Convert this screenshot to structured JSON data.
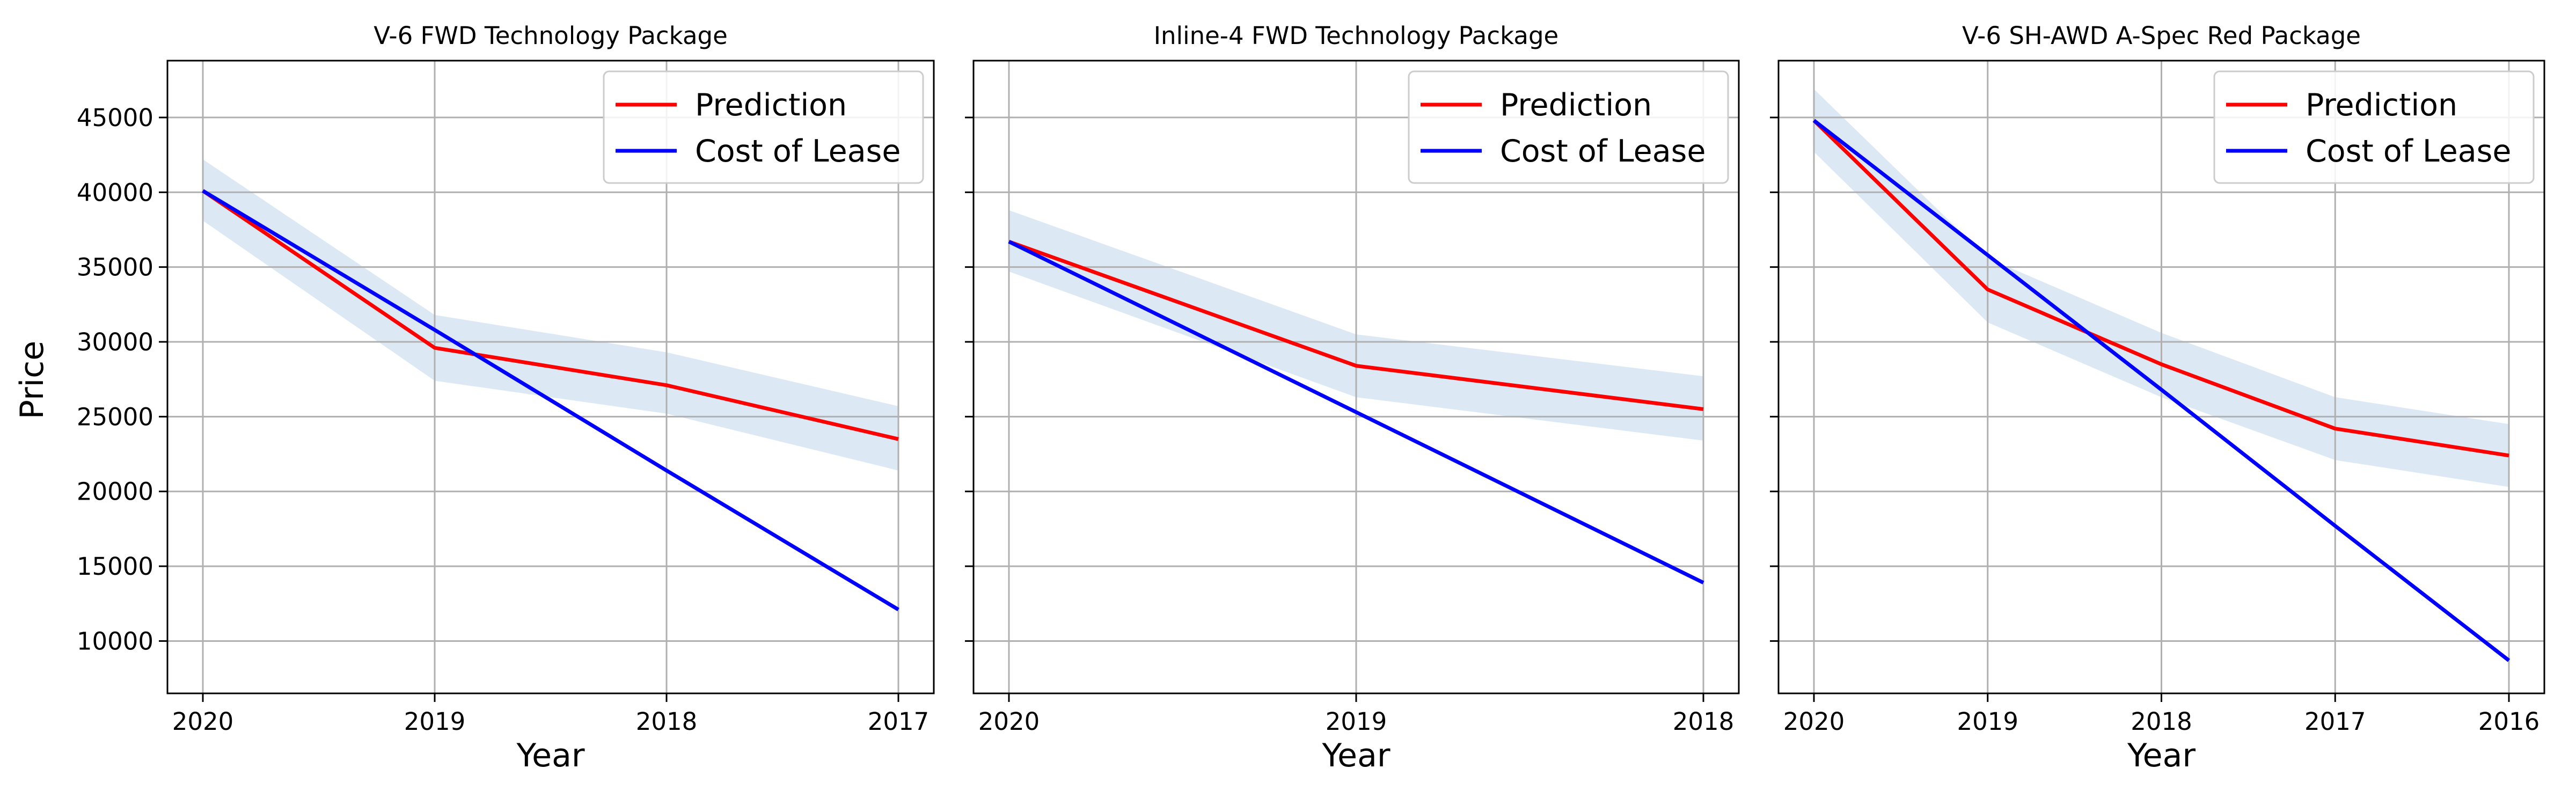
{
  "figure": {
    "ylabel": "Price",
    "xlabel": "Year",
    "yticks": [
      10000,
      15000,
      20000,
      25000,
      30000,
      35000,
      40000,
      45000
    ],
    "ylim": [
      6500,
      48800
    ]
  },
  "colors": {
    "prediction": "#ff0000",
    "cost_of_lease": "#0000ff",
    "band": "#dce9f5",
    "grid": "#b0b0b0"
  },
  "chart_data": [
    {
      "type": "line",
      "title": "V-6 FWD Technology Package",
      "categories": [
        "2020",
        "2019",
        "2018",
        "2017"
      ],
      "xlabel": "Year",
      "ylabel": "Price",
      "ylim": [
        6500,
        48800
      ],
      "grid": true,
      "legend_position": "top-right",
      "series": [
        {
          "name": "Prediction",
          "values": [
            40100,
            29600,
            27100,
            23500
          ]
        },
        {
          "name": "Cost of Lease",
          "values": [
            40100,
            30800,
            21400,
            12100
          ]
        }
      ],
      "band": {
        "lower": [
          38100,
          27400,
          25200,
          21400
        ],
        "upper": [
          42200,
          31800,
          29300,
          25700
        ]
      }
    },
    {
      "type": "line",
      "title": "Inline-4 FWD Technology Package",
      "categories": [
        "2020",
        "2019",
        "2018"
      ],
      "xlabel": "Year",
      "ylabel": "",
      "ylim": [
        6500,
        48800
      ],
      "grid": true,
      "legend_position": "top-right",
      "series": [
        {
          "name": "Prediction",
          "values": [
            36700,
            28400,
            25500
          ]
        },
        {
          "name": "Cost of Lease",
          "values": [
            36700,
            25300,
            13900
          ]
        }
      ],
      "band": {
        "lower": [
          34700,
          26300,
          23400
        ],
        "upper": [
          38800,
          30500,
          27700
        ]
      }
    },
    {
      "type": "line",
      "title": "V-6 SH-AWD A-Spec Red Package",
      "categories": [
        "2020",
        "2019",
        "2018",
        "2017",
        "2016"
      ],
      "xlabel": "Year",
      "ylabel": "",
      "ylim": [
        6500,
        48800
      ],
      "grid": true,
      "legend_position": "top-right",
      "series": [
        {
          "name": "Prediction",
          "values": [
            44800,
            33500,
            28500,
            24200,
            22400
          ]
        },
        {
          "name": "Cost of Lease",
          "values": [
            44800,
            35800,
            26800,
            17700,
            8700
          ]
        }
      ],
      "band": {
        "lower": [
          42700,
          31300,
          26300,
          22100,
          20300
        ],
        "upper": [
          46900,
          35600,
          30600,
          26300,
          24500
        ]
      }
    }
  ]
}
